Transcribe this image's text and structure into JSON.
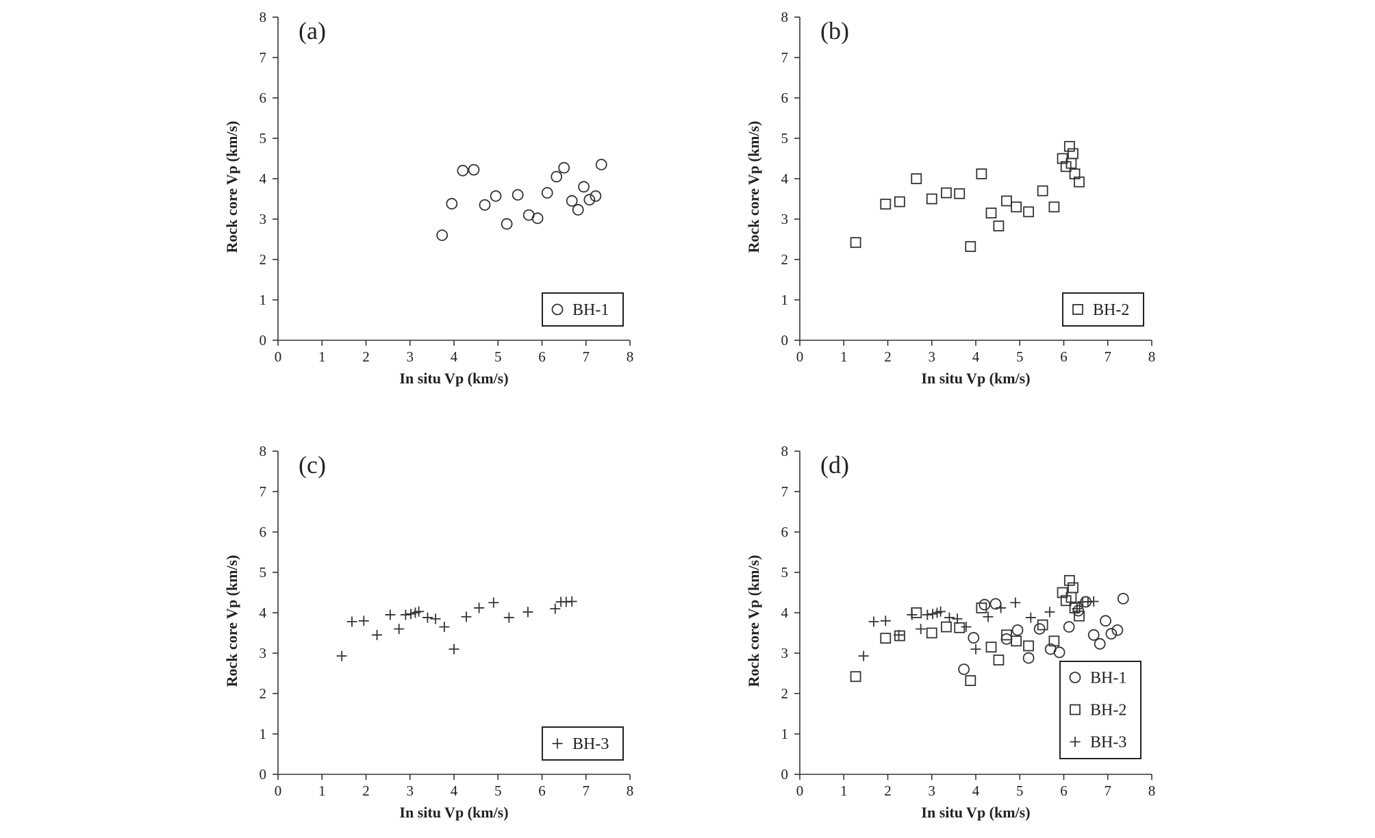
{
  "chart_data": [
    {
      "type": "scatter",
      "panel_label": "(a)",
      "xlabel": "In situ Vp (km/s)",
      "ylabel": "Rock core Vp (km/s)",
      "xlim": [
        0,
        8
      ],
      "ylim": [
        0,
        8
      ],
      "xticks": [
        "0",
        "1",
        "2",
        "3",
        "4",
        "5",
        "6",
        "7",
        "8"
      ],
      "yticks": [
        "0",
        "1",
        "2",
        "3",
        "4",
        "5",
        "6",
        "7",
        "8"
      ],
      "legend_position": "bottom-right",
      "series": [
        {
          "name": "BH-1",
          "marker": "circle",
          "points": [
            [
              3.73,
              2.6
            ],
            [
              3.95,
              3.38
            ],
            [
              4.2,
              4.2
            ],
            [
              4.45,
              4.22
            ],
            [
              4.7,
              3.35
            ],
            [
              4.95,
              3.57
            ],
            [
              5.2,
              2.88
            ],
            [
              5.45,
              3.6
            ],
            [
              5.7,
              3.1
            ],
            [
              5.9,
              3.02
            ],
            [
              6.12,
              3.65
            ],
            [
              6.33,
              4.05
            ],
            [
              6.5,
              4.27
            ],
            [
              6.68,
              3.45
            ],
            [
              6.82,
              3.23
            ],
            [
              6.95,
              3.8
            ],
            [
              7.08,
              3.48
            ],
            [
              7.22,
              3.57
            ],
            [
              7.35,
              4.35
            ]
          ]
        }
      ]
    },
    {
      "type": "scatter",
      "panel_label": "(b)",
      "xlabel": "In situ Vp (km/s)",
      "ylabel": "Rock core Vp (km/s)",
      "xlim": [
        0,
        8
      ],
      "ylim": [
        0,
        8
      ],
      "xticks": [
        "0",
        "1",
        "2",
        "3",
        "4",
        "5",
        "6",
        "7",
        "8"
      ],
      "yticks": [
        "0",
        "1",
        "2",
        "3",
        "4",
        "5",
        "6",
        "7",
        "8"
      ],
      "legend_position": "bottom-right",
      "series": [
        {
          "name": "BH-2",
          "marker": "square",
          "points": [
            [
              1.27,
              2.42
            ],
            [
              1.95,
              3.37
            ],
            [
              2.27,
              3.43
            ],
            [
              2.65,
              4.0
            ],
            [
              3.0,
              3.5
            ],
            [
              3.33,
              3.65
            ],
            [
              3.63,
              3.63
            ],
            [
              3.88,
              2.32
            ],
            [
              4.13,
              4.12
            ],
            [
              4.35,
              3.15
            ],
            [
              4.52,
              2.83
            ],
            [
              4.7,
              3.45
            ],
            [
              4.92,
              3.3
            ],
            [
              5.2,
              3.18
            ],
            [
              5.52,
              3.7
            ],
            [
              5.78,
              3.3
            ],
            [
              5.97,
              4.5
            ],
            [
              6.05,
              4.3
            ],
            [
              6.13,
              4.8
            ],
            [
              6.17,
              4.38
            ],
            [
              6.21,
              4.62
            ],
            [
              6.25,
              4.12
            ],
            [
              6.35,
              3.92
            ]
          ]
        }
      ]
    },
    {
      "type": "scatter",
      "panel_label": "(c)",
      "xlabel": "In situ Vp (km/s)",
      "ylabel": "Rock core Vp (km/s)",
      "xlim": [
        0,
        8
      ],
      "ylim": [
        0,
        8
      ],
      "xticks": [
        "0",
        "1",
        "2",
        "3",
        "4",
        "5",
        "6",
        "7",
        "8"
      ],
      "yticks": [
        "0",
        "1",
        "2",
        "3",
        "4",
        "5",
        "6",
        "7",
        "8"
      ],
      "legend_position": "bottom-right",
      "series": [
        {
          "name": "BH-3",
          "marker": "plus",
          "points": [
            [
              1.45,
              2.93
            ],
            [
              1.68,
              3.78
            ],
            [
              1.95,
              3.8
            ],
            [
              2.25,
              3.45
            ],
            [
              2.55,
              3.95
            ],
            [
              2.75,
              3.6
            ],
            [
              2.9,
              3.95
            ],
            [
              3.02,
              3.97
            ],
            [
              3.12,
              4.0
            ],
            [
              3.2,
              4.03
            ],
            [
              3.4,
              3.88
            ],
            [
              3.58,
              3.85
            ],
            [
              3.78,
              3.65
            ],
            [
              4.0,
              3.1
            ],
            [
              4.28,
              3.9
            ],
            [
              4.57,
              4.12
            ],
            [
              4.9,
              4.25
            ],
            [
              5.25,
              3.88
            ],
            [
              5.68,
              4.02
            ],
            [
              6.3,
              4.1
            ],
            [
              6.43,
              4.27
            ],
            [
              6.55,
              4.27
            ],
            [
              6.68,
              4.28
            ]
          ]
        }
      ]
    },
    {
      "type": "scatter",
      "panel_label": "(d)",
      "xlabel": "In situ Vp (km/s)",
      "ylabel": "Rock core Vp (km/s)",
      "xlim": [
        0,
        8
      ],
      "ylim": [
        0,
        8
      ],
      "xticks": [
        "0",
        "1",
        "2",
        "3",
        "4",
        "5",
        "6",
        "7",
        "8"
      ],
      "yticks": [
        "0",
        "1",
        "2",
        "3",
        "4",
        "5",
        "6",
        "7",
        "8"
      ],
      "legend_position": "bottom-right",
      "series": [
        {
          "name": "BH-1",
          "marker": "circle",
          "points": [
            [
              3.73,
              2.6
            ],
            [
              3.95,
              3.38
            ],
            [
              4.2,
              4.2
            ],
            [
              4.45,
              4.22
            ],
            [
              4.7,
              3.35
            ],
            [
              4.95,
              3.57
            ],
            [
              5.2,
              2.88
            ],
            [
              5.45,
              3.6
            ],
            [
              5.7,
              3.1
            ],
            [
              5.9,
              3.02
            ],
            [
              6.12,
              3.65
            ],
            [
              6.33,
              4.05
            ],
            [
              6.5,
              4.27
            ],
            [
              6.68,
              3.45
            ],
            [
              6.82,
              3.23
            ],
            [
              6.95,
              3.8
            ],
            [
              7.08,
              3.48
            ],
            [
              7.22,
              3.57
            ],
            [
              7.35,
              4.35
            ]
          ]
        },
        {
          "name": "BH-2",
          "marker": "square",
          "points": [
            [
              1.27,
              2.42
            ],
            [
              1.95,
              3.37
            ],
            [
              2.27,
              3.43
            ],
            [
              2.65,
              4.0
            ],
            [
              3.0,
              3.5
            ],
            [
              3.33,
              3.65
            ],
            [
              3.63,
              3.63
            ],
            [
              3.88,
              2.32
            ],
            [
              4.13,
              4.12
            ],
            [
              4.35,
              3.15
            ],
            [
              4.52,
              2.83
            ],
            [
              4.7,
              3.45
            ],
            [
              4.92,
              3.3
            ],
            [
              5.2,
              3.18
            ],
            [
              5.52,
              3.7
            ],
            [
              5.78,
              3.3
            ],
            [
              5.97,
              4.5
            ],
            [
              6.05,
              4.3
            ],
            [
              6.13,
              4.8
            ],
            [
              6.17,
              4.38
            ],
            [
              6.21,
              4.62
            ],
            [
              6.25,
              4.12
            ],
            [
              6.35,
              3.92
            ]
          ]
        },
        {
          "name": "BH-3",
          "marker": "plus",
          "points": [
            [
              1.45,
              2.93
            ],
            [
              1.68,
              3.78
            ],
            [
              1.95,
              3.8
            ],
            [
              2.25,
              3.45
            ],
            [
              2.55,
              3.95
            ],
            [
              2.75,
              3.6
            ],
            [
              2.9,
              3.95
            ],
            [
              3.02,
              3.97
            ],
            [
              3.12,
              4.0
            ],
            [
              3.2,
              4.03
            ],
            [
              3.4,
              3.88
            ],
            [
              3.58,
              3.85
            ],
            [
              3.78,
              3.65
            ],
            [
              4.0,
              3.1
            ],
            [
              4.28,
              3.9
            ],
            [
              4.57,
              4.12
            ],
            [
              4.9,
              4.25
            ],
            [
              5.25,
              3.88
            ],
            [
              5.68,
              4.02
            ],
            [
              6.3,
              4.1
            ],
            [
              6.43,
              4.27
            ],
            [
              6.55,
              4.27
            ],
            [
              6.68,
              4.28
            ]
          ]
        }
      ]
    }
  ]
}
